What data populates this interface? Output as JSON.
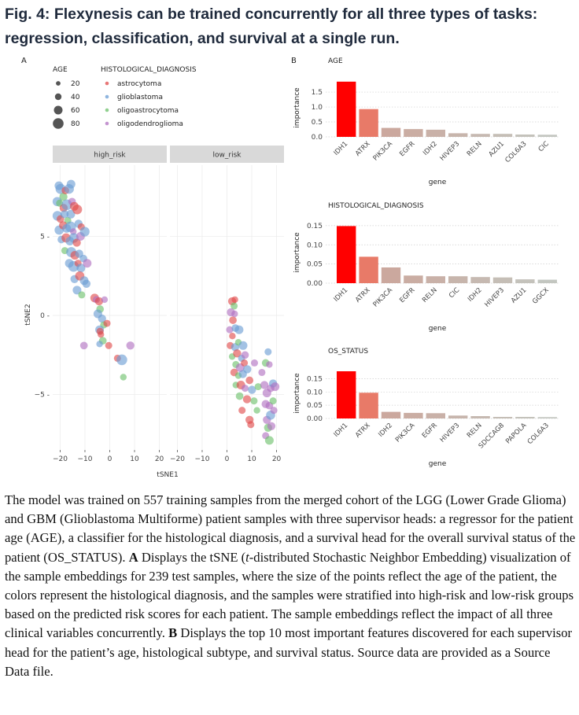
{
  "figure": {
    "title": "Fig. 4: Flexynesis can be trained concurrently for all three types of tasks: regression, classification, and survival at a single run.",
    "panel_a_label": "A",
    "panel_b_label": "B"
  },
  "colors": {
    "astrocytoma": "#e04a4a",
    "glioblastoma": "#6a9cd4",
    "oligoastrocytoma": "#6cc06a",
    "oligodendroglioma": "#b070c0",
    "bar_top": "#ff0000",
    "strip_bg": "#d9d9d9"
  },
  "chart_data": [
    {
      "type": "scatter",
      "panel": "A",
      "title": "",
      "xlabel": "tSNE1",
      "ylabel": "tSNE2",
      "facets": [
        "high_risk",
        "low_risk"
      ],
      "xlim": [
        -23,
        23
      ],
      "ylim": [
        -8.5,
        9.5
      ],
      "xticks": [
        -20,
        -10,
        0,
        10,
        20
      ],
      "xtick_labels": [
        "−20",
        "−10",
        "0",
        "10",
        "20"
      ],
      "yticks": [
        5,
        0,
        -5
      ],
      "ytick_labels": [
        "5 -",
        "0 -",
        "−5 -"
      ],
      "legend_age_title": "AGE",
      "legend_age": [
        {
          "label": "20",
          "value": 20
        },
        {
          "label": "40",
          "value": 40
        },
        {
          "label": "60",
          "value": 60
        },
        {
          "label": "80",
          "value": 80
        }
      ],
      "legend_dx_title": "HISTOLOGICAL_DIAGNOSIS",
      "legend_dx": [
        "astrocytoma",
        "glioblastoma",
        "oligoastrocytoma",
        "oligodendroglioma"
      ],
      "series": [
        {
          "name": "high_risk",
          "points": [
            [
              -20.5,
              8.2,
              60,
              "glioblastoma"
            ],
            [
              -19.8,
              8.0,
              75,
              "glioblastoma"
            ],
            [
              -18.7,
              7.5,
              55,
              "oligoastrocytoma"
            ],
            [
              -17.9,
              7.9,
              50,
              "astrocytoma"
            ],
            [
              -16.4,
              8.0,
              70,
              "glioblastoma"
            ],
            [
              -15.6,
              8.3,
              60,
              "glioblastoma"
            ],
            [
              -21.2,
              7.2,
              65,
              "glioblastoma"
            ],
            [
              -20.2,
              7.1,
              45,
              "oligoastrocytoma"
            ],
            [
              -18.6,
              6.8,
              55,
              "astrocytoma"
            ],
            [
              -17.3,
              7.0,
              80,
              "glioblastoma"
            ],
            [
              -15.2,
              7.2,
              50,
              "oligodendroglioma"
            ],
            [
              -14.3,
              6.9,
              60,
              "astrocytoma"
            ],
            [
              -21.1,
              6.3,
              70,
              "glioblastoma"
            ],
            [
              -19.9,
              6.1,
              50,
              "astrocytoma"
            ],
            [
              -18.2,
              6.4,
              55,
              "glioblastoma"
            ],
            [
              -16.9,
              6.0,
              45,
              "oligoastrocytoma"
            ],
            [
              -15.7,
              6.4,
              60,
              "glioblastoma"
            ],
            [
              -13.1,
              6.7,
              70,
              "astrocytoma"
            ],
            [
              -20.4,
              5.4,
              65,
              "glioblastoma"
            ],
            [
              -18.8,
              5.7,
              55,
              "astrocytoma"
            ],
            [
              -17.4,
              5.5,
              60,
              "glioblastoma"
            ],
            [
              -15.8,
              5.6,
              80,
              "glioblastoma"
            ],
            [
              -14.7,
              5.3,
              40,
              "oligodendroglioma"
            ],
            [
              -12.6,
              5.8,
              55,
              "glioblastoma"
            ],
            [
              -11.5,
              5.6,
              45,
              "astrocytoma"
            ],
            [
              -19.5,
              4.8,
              50,
              "glioblastoma"
            ],
            [
              -17.6,
              4.9,
              65,
              "astrocytoma"
            ],
            [
              -16.1,
              4.7,
              60,
              "glioblastoma"
            ],
            [
              -14.5,
              4.9,
              70,
              "glioblastoma"
            ],
            [
              -13.3,
              4.6,
              55,
              "astrocytoma"
            ],
            [
              -11.8,
              5.0,
              60,
              "oligodendroglioma"
            ],
            [
              -10.1,
              5.3,
              70,
              "glioblastoma"
            ],
            [
              -18.1,
              4.1,
              45,
              "oligoastrocytoma"
            ],
            [
              -15.5,
              4.0,
              75,
              "glioblastoma"
            ],
            [
              -14.1,
              3.8,
              60,
              "astrocytoma"
            ],
            [
              -12.3,
              3.9,
              55,
              "glioblastoma"
            ],
            [
              -10.6,
              3.6,
              50,
              "glioblastoma"
            ],
            [
              -16.3,
              3.3,
              60,
              "glioblastoma"
            ],
            [
              -14.6,
              3.1,
              80,
              "glioblastoma"
            ],
            [
              -12.8,
              3.3,
              45,
              "astrocytoma"
            ],
            [
              -11.6,
              3.0,
              60,
              "glioblastoma"
            ],
            [
              -9.1,
              3.3,
              60,
              "oligodendroglioma"
            ],
            [
              -14.2,
              2.3,
              55,
              "glioblastoma"
            ],
            [
              -12.1,
              2.5,
              65,
              "astrocytoma"
            ],
            [
              -10.3,
              2.2,
              60,
              "glioblastoma"
            ],
            [
              -13.2,
              1.6,
              60,
              "glioblastoma"
            ],
            [
              -11.3,
              1.3,
              45,
              "oligoastrocytoma"
            ],
            [
              -9.4,
              2.0,
              55,
              "glioblastoma"
            ],
            [
              -6.1,
              1.1,
              60,
              "astrocytoma"
            ],
            [
              -5.4,
              1.0,
              45,
              "oligodendroglioma"
            ],
            [
              -4.3,
              0.9,
              55,
              "astrocytoma"
            ],
            [
              -2.1,
              1.0,
              40,
              "oligodendroglioma"
            ],
            [
              -3.9,
              0.4,
              50,
              "oligoastrocytoma"
            ],
            [
              -4.8,
              0.1,
              60,
              "glioblastoma"
            ],
            [
              -3.1,
              -0.2,
              55,
              "glioblastoma"
            ],
            [
              -2.4,
              -0.6,
              45,
              "oligoastrocytoma"
            ],
            [
              -4.1,
              -0.9,
              60,
              "glioblastoma"
            ],
            [
              -1.1,
              -0.5,
              45,
              "astrocytoma"
            ],
            [
              -3.6,
              -1.2,
              40,
              "astrocytoma"
            ],
            [
              -2.8,
              -1.6,
              50,
              "oligoastrocytoma"
            ],
            [
              -0.4,
              -1.9,
              45,
              "astrocytoma"
            ],
            [
              -4.1,
              -1.8,
              40,
              "glioblastoma"
            ],
            [
              -3.9,
              -1.0,
              45,
              "astrocytoma"
            ],
            [
              3.1,
              -2.7,
              45,
              "astrocytoma"
            ],
            [
              4.9,
              -2.8,
              80,
              "glioblastoma"
            ],
            [
              8.3,
              -1.9,
              55,
              "oligodendroglioma"
            ],
            [
              5.5,
              -3.9,
              40,
              "oligoastrocytoma"
            ],
            [
              -10.4,
              -1.9,
              50,
              "oligodendroglioma"
            ]
          ]
        },
        {
          "name": "low_risk",
          "points": [
            [
              2.1,
              0.9,
              55,
              "astrocytoma"
            ],
            [
              2.9,
              0.6,
              45,
              "oligoastrocytoma"
            ],
            [
              3.2,
              1.0,
              40,
              "astrocytoma"
            ],
            [
              1.6,
              0.2,
              55,
              "oligodendroglioma"
            ],
            [
              2.4,
              -0.3,
              50,
              "astrocytoma"
            ],
            [
              3.1,
              0.1,
              40,
              "oligodendroglioma"
            ],
            [
              1.1,
              -0.9,
              45,
              "oligodendroglioma"
            ],
            [
              2.2,
              -1.3,
              40,
              "astrocytoma"
            ],
            [
              3.4,
              -0.8,
              50,
              "glioblastoma"
            ],
            [
              4.9,
              -0.9,
              60,
              "glioblastoma"
            ],
            [
              1.3,
              -1.9,
              45,
              "astrocytoma"
            ],
            [
              3.3,
              -2.0,
              55,
              "glioblastoma"
            ],
            [
              4.6,
              -1.7,
              40,
              "oligoastrocytoma"
            ],
            [
              6.5,
              -1.9,
              60,
              "glioblastoma"
            ],
            [
              2.1,
              -2.6,
              40,
              "oligoastrocytoma"
            ],
            [
              4.1,
              -2.4,
              55,
              "astrocytoma"
            ],
            [
              5.9,
              -2.7,
              45,
              "glioblastoma"
            ],
            [
              7.3,
              -2.5,
              50,
              "oligodendroglioma"
            ],
            [
              3.6,
              -3.1,
              45,
              "oligoastrocytoma"
            ],
            [
              5.3,
              -3.3,
              60,
              "oligodendroglioma"
            ],
            [
              7.0,
              -3.0,
              45,
              "astrocytoma"
            ],
            [
              8.2,
              -3.4,
              55,
              "glioblastoma"
            ],
            [
              2.9,
              -3.6,
              50,
              "astrocytoma"
            ],
            [
              4.6,
              -3.8,
              40,
              "oligoastrocytoma"
            ],
            [
              6.4,
              -3.7,
              55,
              "glioblastoma"
            ],
            [
              9.1,
              -4.1,
              50,
              "astrocytoma"
            ],
            [
              11.1,
              -3.0,
              45,
              "oligodendroglioma"
            ],
            [
              3.6,
              -4.4,
              40,
              "oligoastrocytoma"
            ],
            [
              5.6,
              -4.4,
              60,
              "astrocytoma"
            ],
            [
              7.3,
              -4.6,
              45,
              "oligodendroglioma"
            ],
            [
              10.1,
              -4.7,
              55,
              "glioblastoma"
            ],
            [
              12.6,
              -4.5,
              45,
              "oligoastrocytoma"
            ],
            [
              5.1,
              -5.1,
              50,
              "oligoastrocytoma"
            ],
            [
              8.1,
              -5.3,
              55,
              "astrocytoma"
            ],
            [
              10.9,
              -5.4,
              45,
              "oligoastrocytoma"
            ],
            [
              14.1,
              -3.6,
              45,
              "oligodendroglioma"
            ],
            [
              15.6,
              -3.0,
              50,
              "oligoastrocytoma"
            ],
            [
              16.6,
              -2.3,
              45,
              "glioblastoma"
            ],
            [
              17.1,
              -3.1,
              40,
              "oligodendroglioma"
            ],
            [
              15.1,
              -4.4,
              55,
              "oligodendroglioma"
            ],
            [
              16.1,
              -4.9,
              60,
              "oligodendroglioma"
            ],
            [
              17.6,
              -4.6,
              50,
              "oligodendroglioma"
            ],
            [
              18.6,
              -4.3,
              55,
              "glioblastoma"
            ],
            [
              19.4,
              -4.5,
              60,
              "oligodendroglioma"
            ],
            [
              15.6,
              -5.6,
              55,
              "oligodendroglioma"
            ],
            [
              17.1,
              -5.7,
              50,
              "oligodendroglioma"
            ],
            [
              18.6,
              -5.4,
              45,
              "oligoastrocytoma"
            ],
            [
              16.1,
              -6.6,
              55,
              "oligodendroglioma"
            ],
            [
              17.6,
              -6.3,
              65,
              "glioblastoma"
            ],
            [
              18.9,
              -6.0,
              45,
              "oligodendroglioma"
            ],
            [
              16.6,
              -7.1,
              55,
              "oligoastrocytoma"
            ],
            [
              17.9,
              -7.0,
              55,
              "oligodendroglioma"
            ],
            [
              15.6,
              -7.6,
              45,
              "oligodendroglioma"
            ],
            [
              17.1,
              -7.9,
              60,
              "oligoastrocytoma"
            ],
            [
              9.1,
              -6.6,
              55,
              "astrocytoma"
            ],
            [
              9.6,
              -6.9,
              45,
              "astrocytoma"
            ],
            [
              12.1,
              -6.0,
              40,
              "oligoastrocytoma"
            ],
            [
              6.1,
              -6.0,
              45,
              "astrocytoma"
            ]
          ]
        }
      ]
    },
    {
      "type": "bar",
      "panel": "B",
      "title": "AGE",
      "xlabel": "gene",
      "ylabel": "importance",
      "ylim": [
        0,
        1.95
      ],
      "yticks": [
        0.0,
        0.5,
        1.0,
        1.5
      ],
      "ytick_labels": [
        "0.0",
        "0.5",
        "1.0",
        "1.5"
      ],
      "categories": [
        "IDH1",
        "ATRX",
        "PIK3CA",
        "EGFR",
        "IDH2",
        "HIVEP3",
        "RELN",
        "AZU1",
        "COL6A3",
        "CIC"
      ],
      "values": [
        1.85,
        0.93,
        0.3,
        0.26,
        0.24,
        0.12,
        0.1,
        0.1,
        0.08,
        0.07
      ]
    },
    {
      "type": "bar",
      "panel": "B",
      "title": "HISTOLOGICAL_DIAGNOSIS",
      "xlabel": "gene",
      "ylabel": "importance",
      "ylim": [
        0,
        0.16
      ],
      "yticks": [
        0.0,
        0.05,
        0.1,
        0.15
      ],
      "ytick_labels": [
        "0.00",
        "0.05",
        "0.10",
        "0.15"
      ],
      "categories": [
        "IDH1",
        "ATRX",
        "PIK3CA",
        "EGFR",
        "RELN",
        "CIC",
        "IDH2",
        "HIVEP3",
        "AZU1",
        "GGCX"
      ],
      "values": [
        0.149,
        0.069,
        0.041,
        0.02,
        0.018,
        0.018,
        0.016,
        0.015,
        0.01,
        0.009
      ]
    },
    {
      "type": "bar",
      "panel": "B",
      "title": "OS_STATUS",
      "xlabel": "gene",
      "ylabel": "importance",
      "ylim": [
        0,
        0.19
      ],
      "yticks": [
        0.0,
        0.05,
        0.1,
        0.15
      ],
      "ytick_labels": [
        "0.00",
        "0.05",
        "0.10",
        "0.15"
      ],
      "categories": [
        "IDH1",
        "ATRX",
        "IDH2",
        "PIK3CA",
        "EGFR",
        "HIVEP3",
        "RELN",
        "SDCCAG8",
        "PAPOLA",
        "COL6A3"
      ],
      "values": [
        0.178,
        0.097,
        0.025,
        0.021,
        0.02,
        0.011,
        0.009,
        0.006,
        0.006,
        0.005
      ]
    }
  ],
  "caption": {
    "p1": "The model was trained on 557 training samples from the merged cohort of the LGG (Lower Grade Glioma) and GBM (Glioblastoma Multiforme) patient samples with three supervisor heads: a regressor for the patient age (AGE), a classifier for the histological diagnosis, and a survival head for the overall survival status of the patient (OS_STATUS).",
    "a_label": "A",
    "p2a": "Displays the tSNE (",
    "p2_italic": "t",
    "p2b": "-distributed Stochastic Neighbor Embedding) visualization of the sample embeddings for 239 test samples, where the size of the points reflect the age of the patient, the colors represent the histological diagnosis, and the samples were stratified into high-risk and low-risk groups based on the predicted risk scores for each patient. The sample embeddings reflect the impact of all three clinical variables concurrently.",
    "b_label": "B",
    "p3": "Displays the top 10 most important features discovered for each supervisor head for the patient’s age, histological subtype, and survival status. Source data are provided as a Source Data file."
  }
}
